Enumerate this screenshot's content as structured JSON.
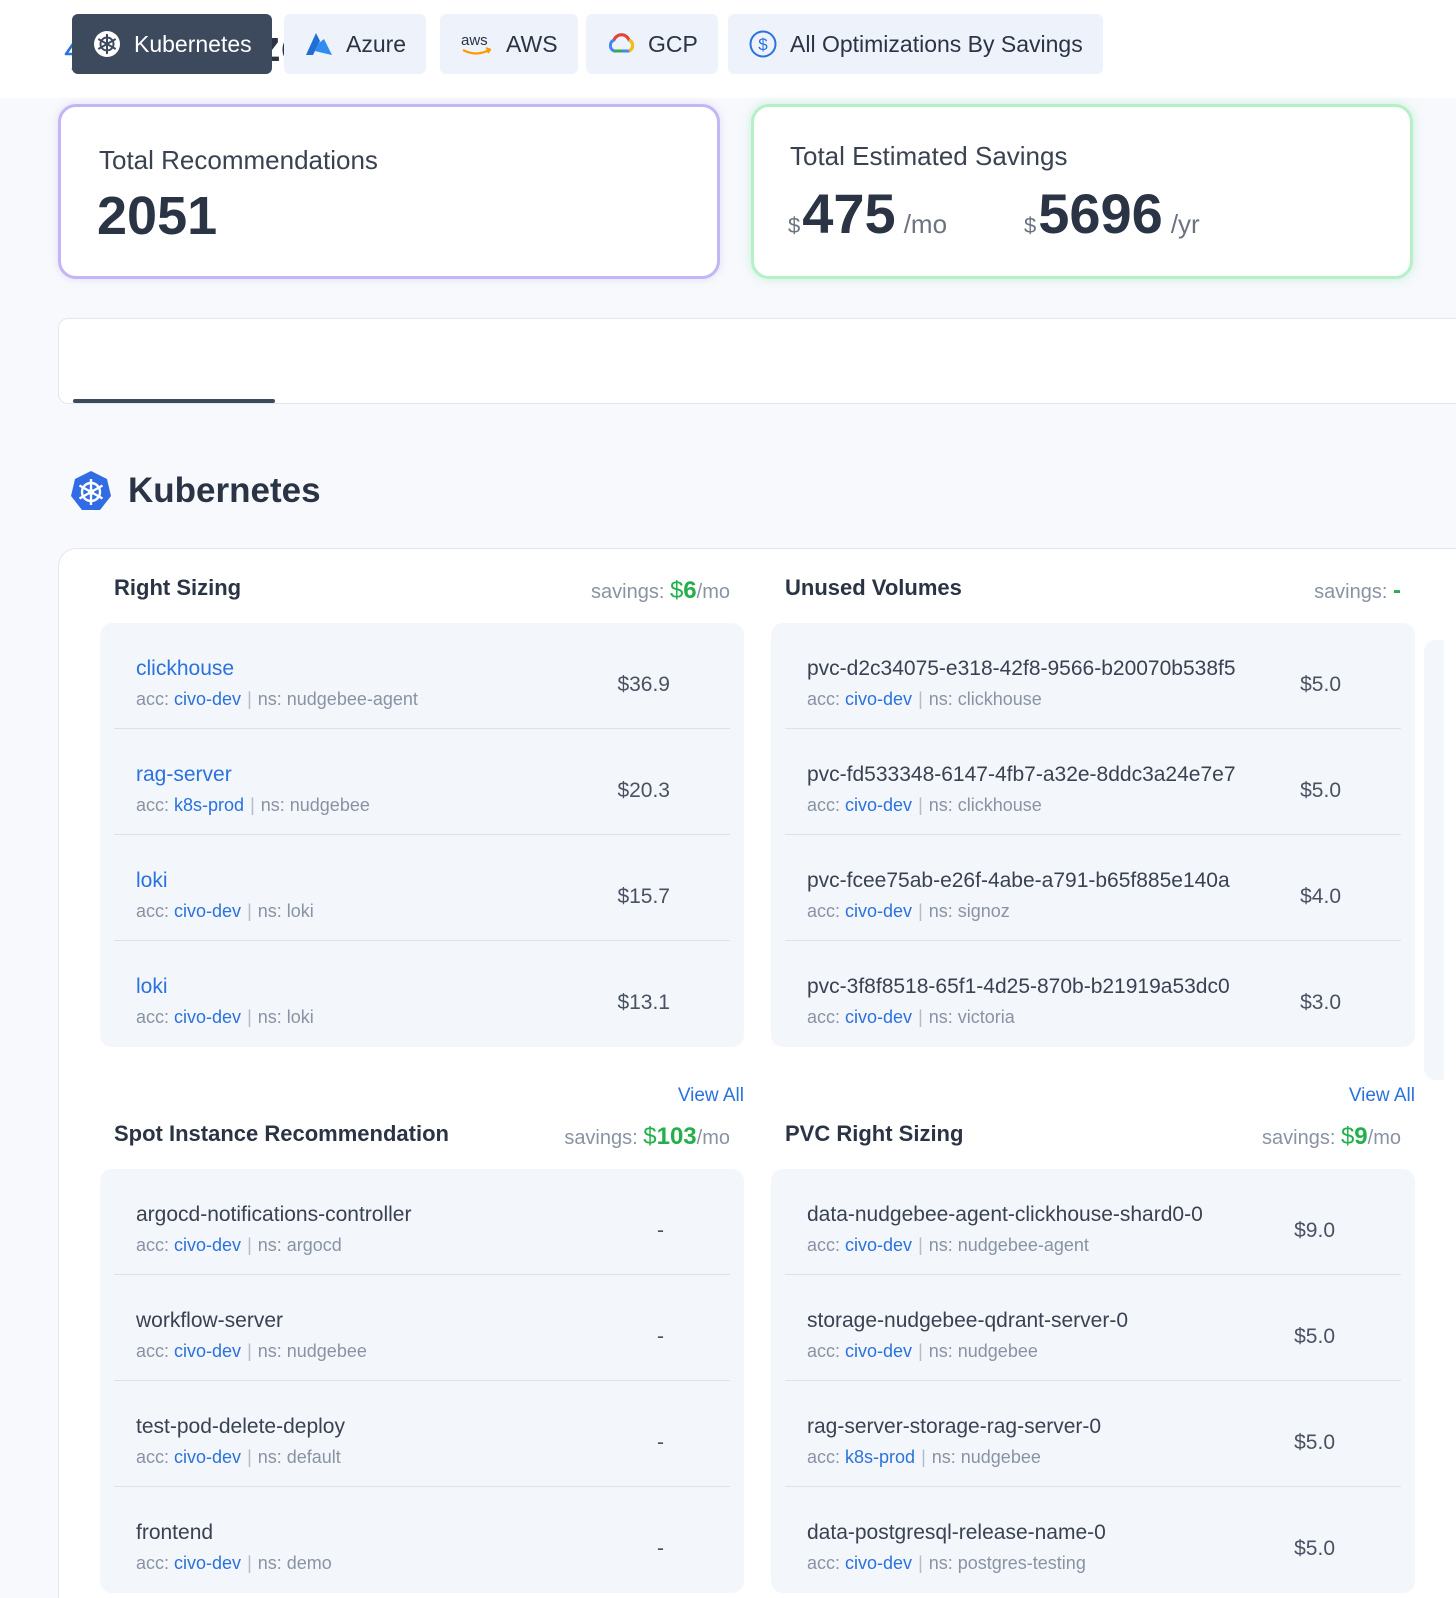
{
  "page": {
    "title": "Optimize"
  },
  "summary": {
    "recommendations": {
      "label": "Total Recommendations",
      "value": "2051"
    },
    "savings": {
      "label": "Total Estimated Savings",
      "monthly": {
        "currency": "$",
        "value": "475",
        "unit": "/mo"
      },
      "yearly": {
        "currency": "$",
        "value": "5696",
        "unit": "/yr"
      }
    }
  },
  "tabs": [
    {
      "label": "Kubernetes",
      "icon": "kubernetes-icon",
      "active": true
    },
    {
      "label": "Azure",
      "icon": "azure-icon",
      "active": false
    },
    {
      "label": "AWS",
      "icon": "aws-icon",
      "active": false
    },
    {
      "label": "GCP",
      "icon": "gcp-icon",
      "active": false
    },
    {
      "label": "All Optimizations By Savings",
      "icon": "dollar-circle-icon",
      "active": false
    }
  ],
  "section": {
    "title": "Kubernetes"
  },
  "blocks": {
    "right_sizing": {
      "title": "Right Sizing",
      "savings_prefix": "savings: ",
      "savings_symbol": "$",
      "savings_value": "6",
      "savings_unit": "/mo",
      "rows": [
        {
          "name": "clickhouse",
          "acc_label": "acc:",
          "acc": "civo-dev",
          "ns": "ns: nudgebee-agent",
          "value": "$36.9"
        },
        {
          "name": "rag-server",
          "acc_label": "acc:",
          "acc": "k8s-prod",
          "ns": "ns: nudgebee",
          "value": "$20.3"
        },
        {
          "name": "loki",
          "acc_label": "acc:",
          "acc": "civo-dev",
          "ns": "ns: loki",
          "value": "$15.7"
        },
        {
          "name": "loki",
          "acc_label": "acc:",
          "acc": "civo-dev",
          "ns": "ns: loki",
          "value": "$13.1"
        }
      ],
      "view_all": "View All"
    },
    "unused_volumes": {
      "title": "Unused Volumes",
      "savings_prefix": "savings: ",
      "savings_value": "-",
      "rows": [
        {
          "name": "pvc-d2c34075-e318-42f8-9566-b20070b538f5",
          "acc_label": "acc:",
          "acc": "civo-dev",
          "ns": "ns: clickhouse",
          "value": "$5.0"
        },
        {
          "name": "pvc-fd533348-6147-4fb7-a32e-8ddc3a24e7e7",
          "acc_label": "acc:",
          "acc": "civo-dev",
          "ns": "ns: clickhouse",
          "value": "$5.0"
        },
        {
          "name": "pvc-fcee75ab-e26f-4abe-a791-b65f885e140a",
          "acc_label": "acc:",
          "acc": "civo-dev",
          "ns": "ns: signoz",
          "value": "$4.0"
        },
        {
          "name": "pvc-3f8f8518-65f1-4d25-870b-b21919a53dc0",
          "acc_label": "acc:",
          "acc": "civo-dev",
          "ns": "ns: victoria",
          "value": "$3.0"
        }
      ],
      "view_all": "View All"
    },
    "spot_instance": {
      "title": "Spot Instance Recommendation",
      "savings_prefix": "savings: ",
      "savings_symbol": "$",
      "savings_value": "103",
      "savings_unit": "/mo",
      "rows": [
        {
          "name": "argocd-notifications-controller",
          "acc_label": "acc:",
          "acc": "civo-dev",
          "ns": "ns: argocd",
          "value": "-"
        },
        {
          "name": "workflow-server",
          "acc_label": "acc:",
          "acc": "civo-dev",
          "ns": "ns: nudgebee",
          "value": "-"
        },
        {
          "name": "test-pod-delete-deploy",
          "acc_label": "acc:",
          "acc": "civo-dev",
          "ns": "ns: default",
          "value": "-"
        },
        {
          "name": "frontend",
          "acc_label": "acc:",
          "acc": "civo-dev",
          "ns": "ns: demo",
          "value": "-"
        }
      ]
    },
    "pvc_right_sizing": {
      "title": "PVC Right Sizing",
      "savings_prefix": "savings: ",
      "savings_symbol": "$",
      "savings_value": "9",
      "savings_unit": "/mo",
      "rows": [
        {
          "name": "data-nudgebee-agent-clickhouse-shard0-0",
          "acc_label": "acc:",
          "acc": "civo-dev",
          "ns": "ns: nudgebee-agent",
          "value": "$9.0"
        },
        {
          "name": "storage-nudgebee-qdrant-server-0",
          "acc_label": "acc:",
          "acc": "civo-dev",
          "ns": "ns: nudgebee",
          "value": "$5.0"
        },
        {
          "name": "rag-server-storage-rag-server-0",
          "acc_label": "acc:",
          "acc": "k8s-prod",
          "ns": "ns: nudgebee",
          "value": "$5.0"
        },
        {
          "name": "data-postgresql-release-name-0",
          "acc_label": "acc:",
          "acc": "civo-dev",
          "ns": "ns: postgres-testing",
          "value": "$5.0"
        }
      ]
    }
  },
  "colors": {
    "accent": "#2a72dd",
    "savings_green": "#22b04b",
    "active_tab": "#3d4a5e",
    "card_bg": "#f3f6fb"
  }
}
